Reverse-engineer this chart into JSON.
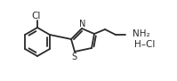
{
  "bg_color": "#ffffff",
  "line_color": "#2a2a2a",
  "line_width": 1.3,
  "text_color": "#2a2a2a",
  "cl_label": "Cl",
  "nh2_label": "NH₂",
  "hcl_label": "H–Cl",
  "s_label": "S",
  "n_label": "N",
  "figsize": [
    1.99,
    0.91
  ],
  "dpi": 100
}
